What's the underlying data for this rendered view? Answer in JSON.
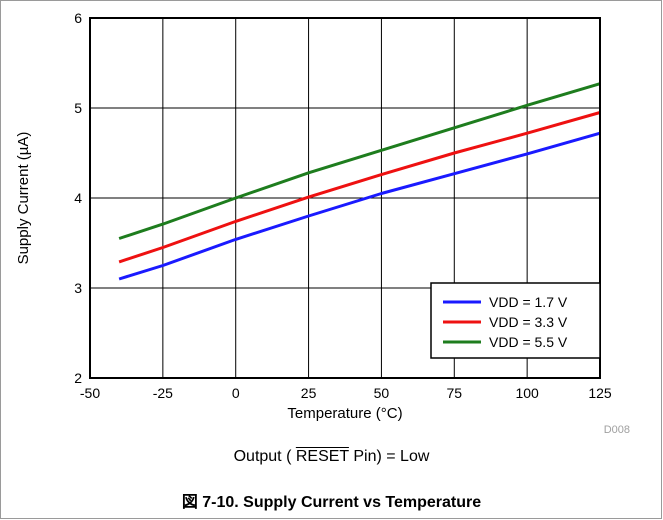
{
  "chart_data": {
    "type": "line",
    "xlabel": "Temperature (°C)",
    "ylabel": "Supply Current (µA)",
    "xlim": [
      -50,
      125
    ],
    "ylim": [
      2,
      6
    ],
    "xticks": [
      "-50",
      "-25",
      "0",
      "25",
      "50",
      "75",
      "100",
      "125"
    ],
    "yticks": [
      "2",
      "3",
      "4",
      "5",
      "6"
    ],
    "grid": true,
    "legend_position": "bottom-right",
    "code_label": "D008",
    "series": [
      {
        "name": "VDD = 1.7 V",
        "color": "#1a1aff",
        "x": [
          -40,
          -25,
          0,
          25,
          50,
          75,
          100,
          125
        ],
        "y": [
          3.1,
          3.25,
          3.54,
          3.8,
          4.05,
          4.27,
          4.49,
          4.72
        ]
      },
      {
        "name": "VDD = 3.3 V",
        "color": "#ee1111",
        "x": [
          -40,
          -25,
          0,
          25,
          50,
          75,
          100,
          125
        ],
        "y": [
          3.29,
          3.45,
          3.74,
          4.01,
          4.26,
          4.5,
          4.72,
          4.95
        ]
      },
      {
        "name": "VDD = 5.5 V",
        "color": "#1e7d1e",
        "x": [
          -40,
          -25,
          0,
          25,
          50,
          75,
          100,
          125
        ],
        "y": [
          3.55,
          3.71,
          4.0,
          4.28,
          4.53,
          4.78,
          5.03,
          5.27
        ]
      }
    ]
  },
  "subcaption": {
    "prefix": "Output ( ",
    "overlined": "RESET",
    "suffix": " Pin) = Low"
  },
  "figure_caption": "図 7-10. Supply Current vs Temperature"
}
